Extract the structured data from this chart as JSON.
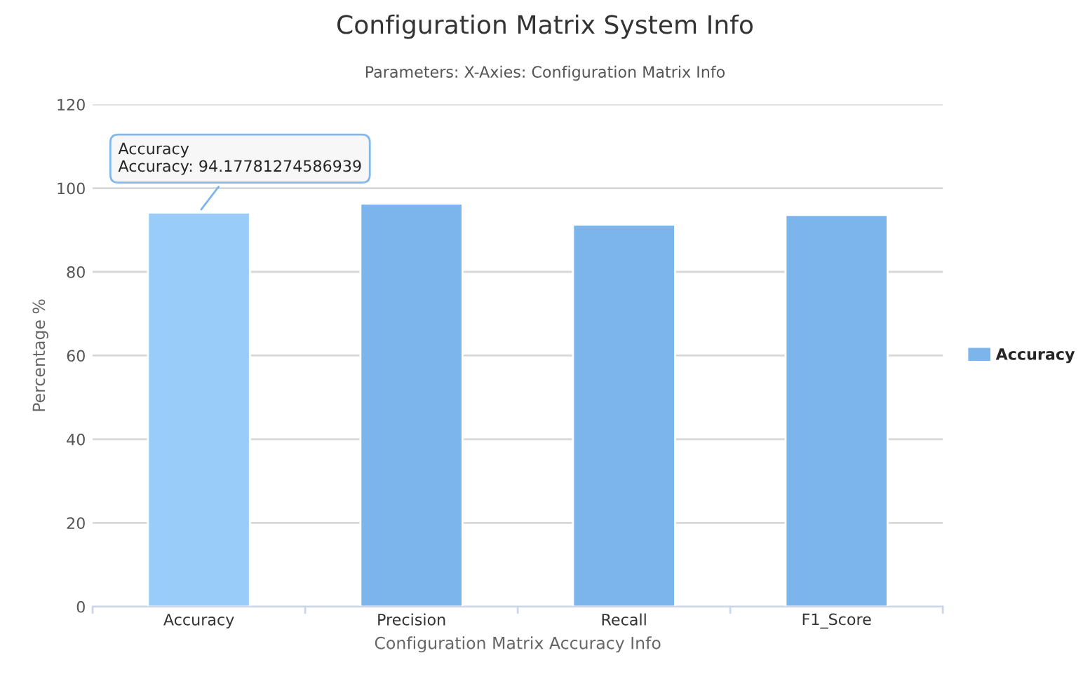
{
  "chart_data": {
    "type": "bar",
    "title": "Configuration Matrix System Info",
    "subtitle": "Parameters: X-Axies: Configuration Matrix Info",
    "xlabel": "Configuration Matrix Accuracy Info",
    "ylabel": "Percentage %",
    "categories": [
      "Accuracy",
      "Precision",
      "Recall",
      "F1_Score"
    ],
    "series": [
      {
        "name": "Accuracy",
        "color": "#7cb5ec",
        "colors": [
          "#99ccf9",
          "#7cb5ec",
          "#7cb5ec",
          "#7cb5ec"
        ],
        "values": [
          94.17781274586939,
          96.3,
          91.3,
          93.6
        ]
      }
    ],
    "ylim": [
      0,
      120
    ],
    "yticks": [
      0,
      20,
      40,
      60,
      80,
      100,
      120
    ],
    "grid": "y",
    "legend": "right",
    "annotations": [
      {
        "text": "Accuracy\nAccuracy: 94.17781274586939",
        "x": "Accuracy",
        "y": 94.17781274586939
      }
    ]
  }
}
